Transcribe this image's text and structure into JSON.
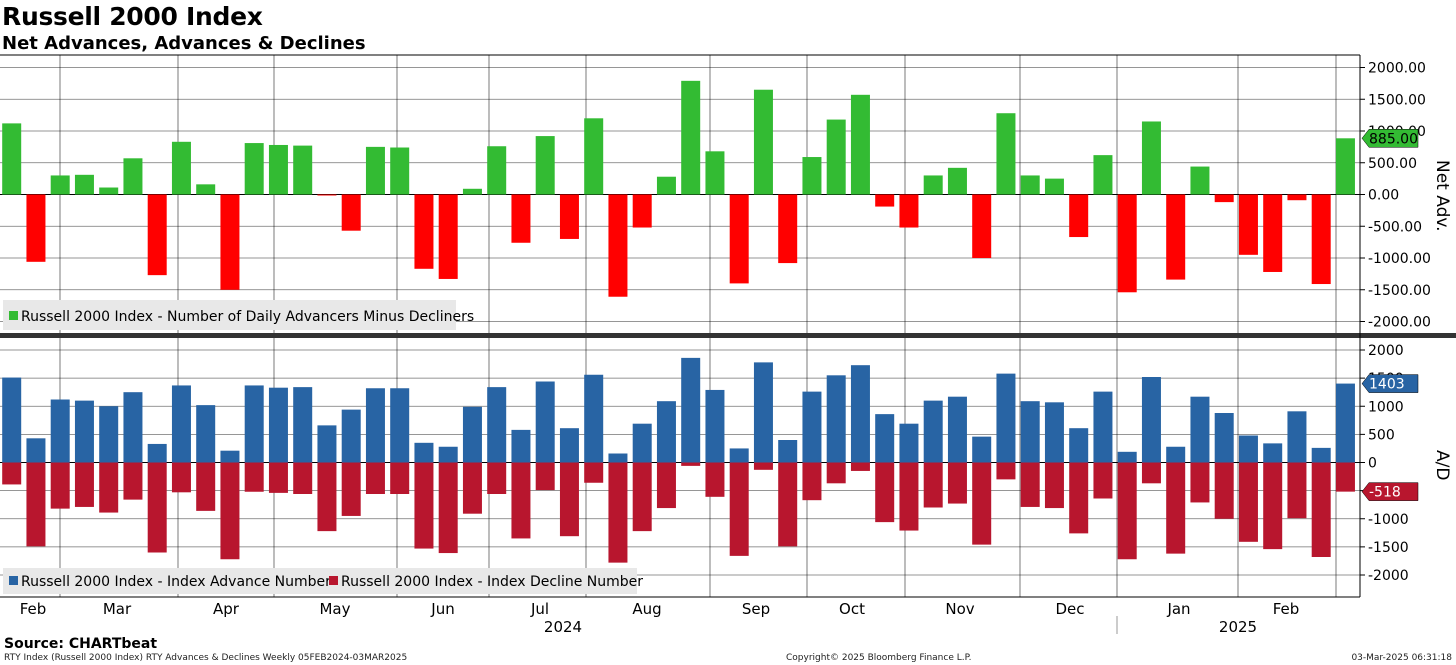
{
  "title": "Russell 2000 Index",
  "subtitle": "Net Advances, Advances & Declines",
  "colors": {
    "net_pos": "#33bb33",
    "net_neg": "#ff0000",
    "adv": "#2864a4",
    "dec": "#b8162e",
    "grid": "#000000",
    "legend_bg": "#e8e8e8"
  },
  "chart_data": [
    {
      "type": "bar",
      "name": "net-advances-panel",
      "axis_label": "Net Adv.",
      "ylim": [
        -2200,
        2200
      ],
      "ticks": [
        2000,
        1500,
        1000,
        500,
        0,
        -500,
        -1000,
        -1500,
        -2000
      ],
      "tick_labels": [
        "2000.00",
        "1500.00",
        "1000.00",
        "500.00",
        "0.00",
        "-500.00",
        "-1000.00",
        "-1500.00",
        "-2000.00"
      ],
      "legend": [
        "Russell 2000 Index - Number of Daily Advancers Minus Decliners"
      ],
      "last_value_label": "885.00",
      "last_value": 885,
      "series": [
        {
          "name": "Russell 2000 Index - Number of Daily Advancers Minus Decliners",
          "values": [
            1120,
            -1060,
            300,
            310,
            110,
            570,
            -1270,
            830,
            160,
            -1500,
            810,
            780,
            770,
            -10,
            -570,
            750,
            740,
            -1170,
            -1330,
            90,
            760,
            -760,
            920,
            -700,
            1200,
            -1610,
            -520,
            280,
            1790,
            680,
            -1400,
            1650,
            -1080,
            590,
            1180,
            1570,
            -190,
            -520,
            300,
            420,
            -1000,
            1280,
            300,
            250,
            -670,
            620,
            -1540,
            1150,
            -1340,
            440,
            -120,
            -950,
            -1220,
            -90,
            -1410,
            885
          ]
        }
      ]
    },
    {
      "type": "bar",
      "name": "advances-declines-panel",
      "axis_label": "A/D",
      "ylim": [
        -2350,
        2200
      ],
      "ticks": [
        2000,
        1500,
        1000,
        500,
        0,
        -500,
        -1000,
        -1500,
        -2000
      ],
      "tick_labels": [
        "2000",
        "1500",
        "1000",
        "500",
        "0",
        "-500",
        "-1000",
        "-1500",
        "-2000"
      ],
      "legend": [
        "Russell 2000 Index - Index Advance Number",
        "Russell 2000 Index - Index Decline Number"
      ],
      "last_advance_label": "1403",
      "last_decline_label": "-518",
      "last_advance": 1403,
      "last_decline": -518,
      "series": [
        {
          "name": "Russell 2000 Index - Index Advance Number",
          "values": [
            1510,
            430,
            1120,
            1100,
            1000,
            1250,
            330,
            1370,
            1020,
            210,
            1370,
            1330,
            1340,
            660,
            940,
            1320,
            1320,
            350,
            280,
            990,
            1340,
            580,
            1440,
            610,
            1560,
            160,
            690,
            1090,
            1860,
            1290,
            250,
            1780,
            400,
            1260,
            1550,
            1730,
            860,
            690,
            1100,
            1170,
            460,
            1580,
            1090,
            1070,
            610,
            1260,
            190,
            1520,
            280,
            1170,
            880,
            480,
            340,
            910,
            260,
            1403
          ]
        },
        {
          "name": "Russell 2000 Index - Index Decline Number",
          "values": [
            -390,
            -1490,
            -820,
            -790,
            -890,
            -660,
            -1600,
            -530,
            -860,
            -1720,
            -520,
            -540,
            -560,
            -1220,
            -950,
            -560,
            -560,
            -1530,
            -1610,
            -910,
            -560,
            -1350,
            -490,
            -1310,
            -360,
            -1780,
            -1220,
            -810,
            -60,
            -610,
            -1660,
            -130,
            -1490,
            -670,
            -370,
            -150,
            -1060,
            -1210,
            -800,
            -730,
            -1460,
            -300,
            -790,
            -810,
            -1260,
            -640,
            -1720,
            -370,
            -1620,
            -710,
            -1000,
            -1410,
            -1540,
            -990,
            -1680,
            -518
          ]
        }
      ]
    }
  ],
  "x_axis": {
    "months": [
      "Feb",
      "Mar",
      "Apr",
      "May",
      "Jun",
      "Jul",
      "Aug",
      "Sep",
      "Oct",
      "Nov",
      "Dec",
      "Jan",
      "Feb"
    ],
    "year_2024": "2024",
    "year_2025": "2025"
  },
  "source": "Source: CHARTbeat",
  "footer": {
    "left": "RTY Index (Russell 2000 Index) RTY Advances & Declines  Weekly 05FEB2024-03MAR2025",
    "center": "Copyright© 2025 Bloomberg Finance L.P.",
    "right": "03-Mar-2025 06:31:18"
  }
}
